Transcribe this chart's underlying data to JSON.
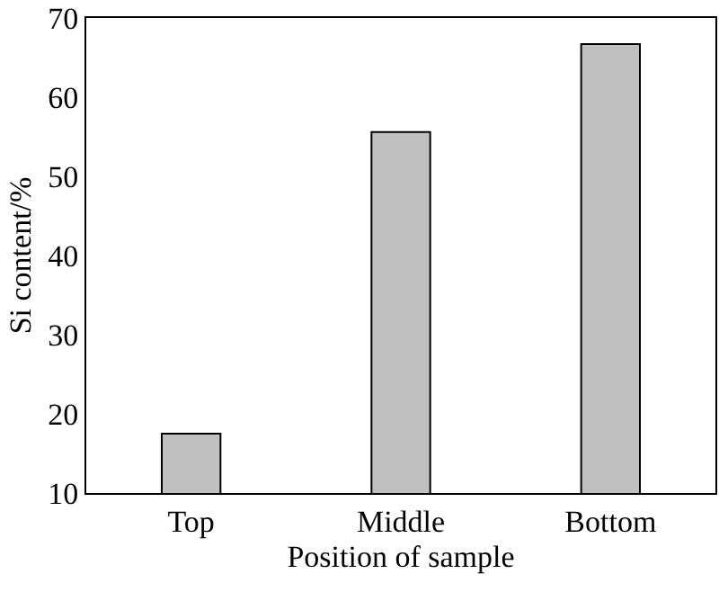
{
  "chart_data": {
    "type": "bar",
    "xlabel": "Position of sample",
    "ylabel": "Si content/%",
    "categories": [
      "Top",
      "Middle",
      "Bottom"
    ],
    "values": [
      17.5,
      55.6,
      66.7
    ],
    "color": "#c0c0c0",
    "ylim": [
      10,
      70
    ],
    "yticks": [
      10,
      20,
      30,
      40,
      50,
      60,
      70
    ],
    "grid": false
  }
}
